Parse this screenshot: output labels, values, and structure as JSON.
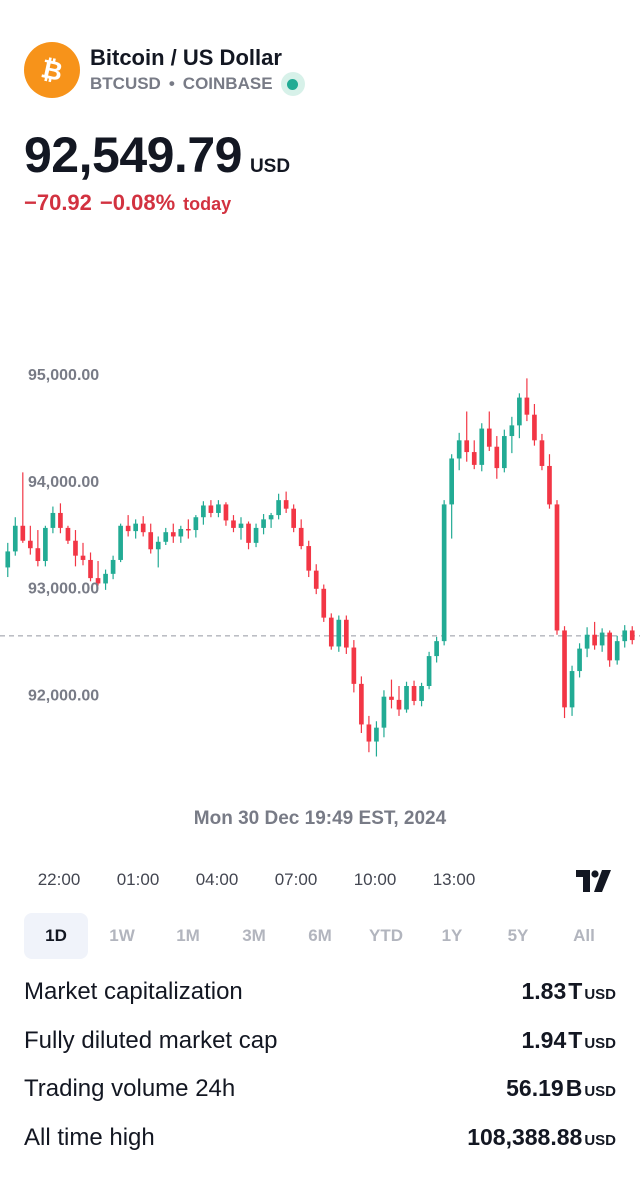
{
  "header": {
    "title": "Bitcoin / US Dollar",
    "symbol": "BTCUSD",
    "separator": "•",
    "exchange": "COINBASE",
    "logo_icon": "bitcoin-logo-icon",
    "live_icon": "live-status-dot-icon"
  },
  "quote": {
    "price": "92,549.79",
    "currency": "USD",
    "change_abs": "−70.92",
    "change_pct": "−0.08%",
    "change_period": "today",
    "change_color": "#d23240"
  },
  "chart_data": {
    "type": "candlestick",
    "y_tick_labels": [
      "95,000.00",
      "94,000.00",
      "93,000.00",
      "92,000.00"
    ],
    "y_ticks": [
      95000,
      94000,
      93000,
      92000
    ],
    "ylim": [
      91200,
      95600
    ],
    "x_tick_labels": [
      "22:00",
      "01:00",
      "04:00",
      "07:00",
      "10:00",
      "13:00"
    ],
    "current_price_line": 92549.79,
    "colors": {
      "up": "#22ab94",
      "down": "#f23645"
    },
    "grid": false,
    "candles": [
      [
        93190,
        93420,
        93100,
        93340
      ],
      [
        93340,
        93660,
        93300,
        93580
      ],
      [
        93580,
        94080,
        93420,
        93440
      ],
      [
        93440,
        93580,
        93310,
        93370
      ],
      [
        93370,
        93540,
        93200,
        93250
      ],
      [
        93250,
        93580,
        93200,
        93560
      ],
      [
        93560,
        93760,
        93510,
        93700
      ],
      [
        93700,
        93790,
        93510,
        93560
      ],
      [
        93560,
        93580,
        93410,
        93440
      ],
      [
        93440,
        93540,
        93200,
        93300
      ],
      [
        93300,
        93420,
        93210,
        93260
      ],
      [
        93260,
        93330,
        93060,
        93090
      ],
      [
        93090,
        93250,
        93020,
        93040
      ],
      [
        93040,
        93170,
        92980,
        93130
      ],
      [
        93130,
        93300,
        93080,
        93260
      ],
      [
        93260,
        93600,
        93240,
        93580
      ],
      [
        93580,
        93680,
        93480,
        93530
      ],
      [
        93530,
        93640,
        93460,
        93600
      ],
      [
        93600,
        93670,
        93480,
        93520
      ],
      [
        93520,
        93600,
        93320,
        93360
      ],
      [
        93360,
        93480,
        93190,
        93430
      ],
      [
        93430,
        93560,
        93400,
        93520
      ],
      [
        93520,
        93600,
        93420,
        93480
      ],
      [
        93480,
        93580,
        93420,
        93550
      ],
      [
        93550,
        93640,
        93460,
        93540
      ],
      [
        93540,
        93680,
        93470,
        93660
      ],
      [
        93660,
        93810,
        93590,
        93770
      ],
      [
        93770,
        93820,
        93660,
        93700
      ],
      [
        93700,
        93820,
        93660,
        93780
      ],
      [
        93780,
        93800,
        93580,
        93630
      ],
      [
        93630,
        93680,
        93520,
        93560
      ],
      [
        93560,
        93660,
        93450,
        93600
      ],
      [
        93600,
        93620,
        93360,
        93420
      ],
      [
        93420,
        93600,
        93380,
        93560
      ],
      [
        93560,
        93690,
        93500,
        93640
      ],
      [
        93640,
        93700,
        93560,
        93680
      ],
      [
        93680,
        93880,
        93640,
        93820
      ],
      [
        93820,
        93900,
        93700,
        93740
      ],
      [
        93740,
        93780,
        93520,
        93560
      ],
      [
        93560,
        93640,
        93360,
        93390
      ],
      [
        93390,
        93440,
        93100,
        93160
      ],
      [
        93160,
        93220,
        92940,
        92990
      ],
      [
        92990,
        93030,
        92680,
        92720
      ],
      [
        92720,
        92760,
        92420,
        92450
      ],
      [
        92450,
        92740,
        92400,
        92700
      ],
      [
        92700,
        92740,
        92380,
        92440
      ],
      [
        92440,
        92510,
        92020,
        92100
      ],
      [
        92100,
        92170,
        91640,
        91720
      ],
      [
        91720,
        91800,
        91460,
        91560
      ],
      [
        91560,
        91750,
        91420,
        91690
      ],
      [
        91690,
        92040,
        91600,
        91980
      ],
      [
        91980,
        92140,
        91870,
        91950
      ],
      [
        91950,
        92080,
        91800,
        91860
      ],
      [
        91860,
        92120,
        91830,
        92080
      ],
      [
        92080,
        92130,
        91900,
        91940
      ],
      [
        91940,
        92110,
        91890,
        92080
      ],
      [
        92080,
        92400,
        92050,
        92360
      ],
      [
        92360,
        92540,
        92300,
        92500
      ],
      [
        92500,
        93820,
        92460,
        93780
      ],
      [
        93780,
        94250,
        93460,
        94210
      ],
      [
        94210,
        94450,
        94100,
        94380
      ],
      [
        94380,
        94650,
        94180,
        94270
      ],
      [
        94270,
        94380,
        94110,
        94150
      ],
      [
        94150,
        94540,
        94090,
        94490
      ],
      [
        94490,
        94650,
        94280,
        94320
      ],
      [
        94320,
        94420,
        94020,
        94120
      ],
      [
        94120,
        94480,
        94080,
        94420
      ],
      [
        94420,
        94600,
        94260,
        94520
      ],
      [
        94520,
        94820,
        94400,
        94780
      ],
      [
        94780,
        94960,
        94560,
        94620
      ],
      [
        94620,
        94720,
        94330,
        94380
      ],
      [
        94380,
        94440,
        94100,
        94140
      ],
      [
        94140,
        94250,
        93740,
        93780
      ],
      [
        93780,
        93820,
        92560,
        92600
      ],
      [
        92600,
        92640,
        91780,
        91880
      ],
      [
        91880,
        92270,
        91800,
        92220
      ],
      [
        92220,
        92480,
        92160,
        92430
      ],
      [
        92430,
        92630,
        92350,
        92560
      ],
      [
        92560,
        92680,
        92420,
        92460
      ],
      [
        92460,
        92620,
        92400,
        92580
      ],
      [
        92580,
        92600,
        92260,
        92320
      ],
      [
        92320,
        92550,
        92280,
        92500
      ],
      [
        92500,
        92650,
        92440,
        92600
      ],
      [
        92600,
        92640,
        92470,
        92510
      ]
    ]
  },
  "chart_date_label": "Mon 30 Dec 19:49 EST, 2024",
  "tv_logo_icon": "tradingview-logo-icon",
  "ranges": [
    {
      "label": "1D",
      "active": true
    },
    {
      "label": "1W",
      "active": false
    },
    {
      "label": "1M",
      "active": false
    },
    {
      "label": "3M",
      "active": false
    },
    {
      "label": "6M",
      "active": false
    },
    {
      "label": "YTD",
      "active": false
    },
    {
      "label": "1Y",
      "active": false
    },
    {
      "label": "5Y",
      "active": false
    },
    {
      "label": "All",
      "active": false
    }
  ],
  "stats": [
    {
      "label": "Market capitalization",
      "value": "1.83",
      "unit": "T",
      "currency": "USD"
    },
    {
      "label": "Fully diluted market cap",
      "value": "1.94",
      "unit": "T",
      "currency": "USD"
    },
    {
      "label": "Trading volume 24h",
      "value": "56.19",
      "unit": "B",
      "currency": "USD"
    },
    {
      "label": "All time high",
      "value": "108,388.88",
      "unit": "",
      "currency": "USD"
    }
  ]
}
